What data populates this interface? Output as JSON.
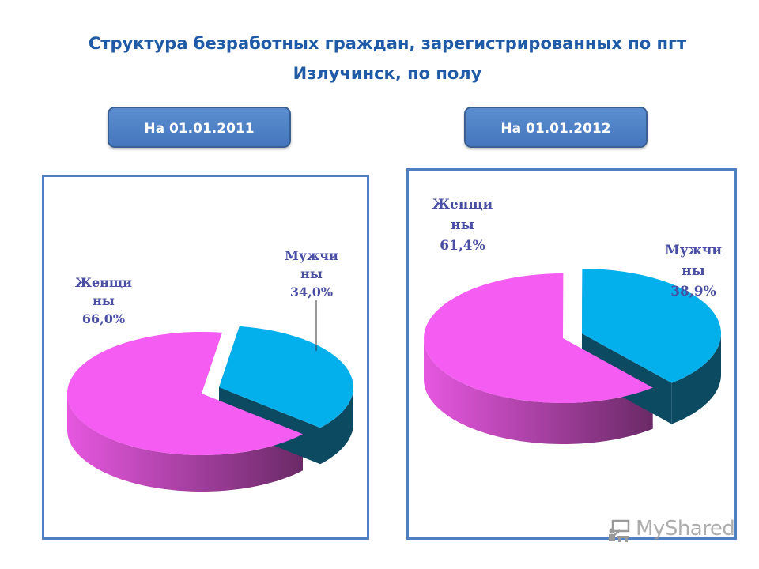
{
  "title_lines": [
    "Структура безработных граждан, зарегистрированных по пгт",
    "Излучинск, по полу"
  ],
  "colors": {
    "title": "#1f5aa6",
    "pill": "#4f81c4",
    "frame": "#4f7fc0",
    "label": "#4a4fa3",
    "women": "#f45cf2",
    "women_side": "#a83fa3",
    "men": "#04b0ec",
    "men_side": "#0c4a62"
  },
  "watermark": {
    "text": "MyShared",
    "icon": "classroom-icon"
  },
  "chart_data": [
    {
      "type": "pie",
      "title": "На 01.01.2011",
      "slices": [
        {
          "label_lines": [
            "Женщи",
            "ны",
            "66,0%"
          ],
          "value": 66.0,
          "color": "#f45cf2"
        },
        {
          "label_lines": [
            "Мужчи",
            "ны",
            "34,0%"
          ],
          "value": 34.0,
          "color": "#04b0ec"
        }
      ]
    },
    {
      "type": "pie",
      "title": "На 01.01.2012",
      "slices": [
        {
          "label_lines": [
            "Женщи",
            "ны",
            "61,4%"
          ],
          "value": 61.4,
          "color": "#f45cf2"
        },
        {
          "label_lines": [
            "Мужчи",
            "ны",
            "38,9%"
          ],
          "value": 38.9,
          "color": "#04b0ec"
        }
      ]
    }
  ]
}
